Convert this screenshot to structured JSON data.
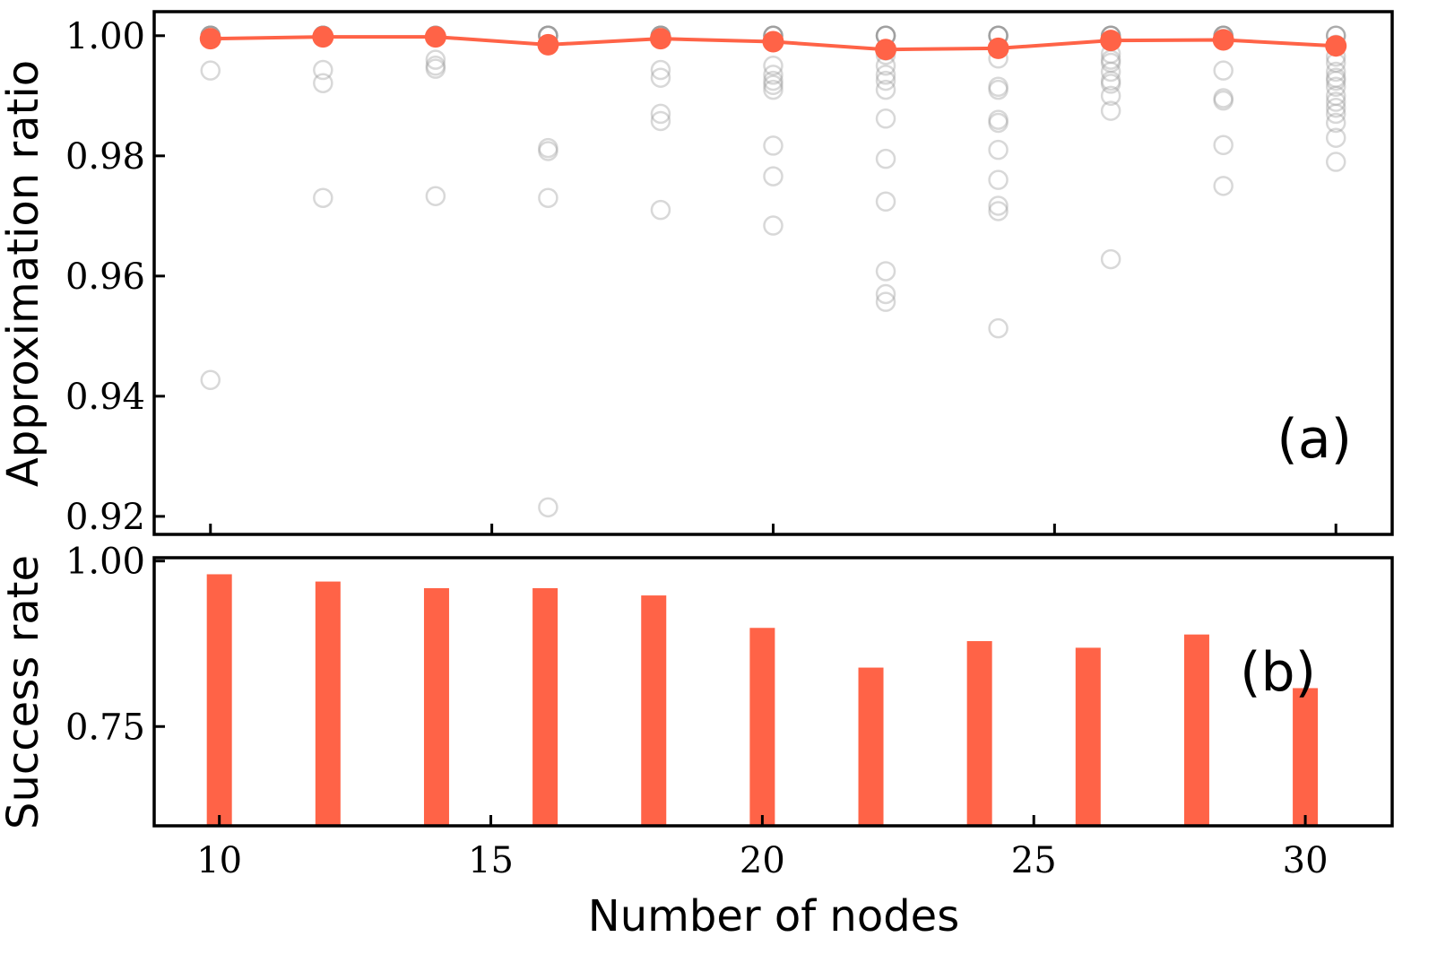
{
  "colors": {
    "accent": "#FF6347",
    "scatter": "#9E9E9E",
    "axis": "#000000"
  },
  "chart_data": [
    {
      "type": "scatter",
      "panel_label": "(a)",
      "ylabel": "Approximation ratio",
      "xlim": [
        9.0,
        31.0
      ],
      "ylim": [
        0.917,
        1.004
      ],
      "xticks": [
        10,
        15,
        20,
        25,
        30
      ],
      "yticks": [
        0.92,
        0.94,
        0.96,
        0.98,
        1.0
      ],
      "ytick_labels": [
        "0.92",
        "0.94",
        "0.96",
        "0.98",
        "1.00"
      ],
      "mean_line": {
        "x": [
          10,
          12,
          14,
          16,
          18,
          20,
          22,
          24,
          26,
          28,
          30
        ],
        "y": [
          0.9995,
          0.9998,
          0.9998,
          0.9985,
          0.9995,
          0.999,
          0.9977,
          0.9979,
          0.9992,
          0.9993,
          0.9983
        ]
      },
      "samples": [
        {
          "x": 10,
          "y": [
            1.0,
            1.0,
            1.0,
            0.9995,
            0.9942,
            0.9427
          ]
        },
        {
          "x": 12,
          "y": [
            1.0,
            1.0,
            1.0,
            0.9943,
            0.9921,
            0.973
          ]
        },
        {
          "x": 14,
          "y": [
            1.0,
            1.0,
            0.996,
            0.995,
            0.9945,
            0.9733
          ]
        },
        {
          "x": 16,
          "y": [
            1.0,
            1.0,
            1.0,
            0.9813,
            0.9808,
            0.973,
            0.9215
          ]
        },
        {
          "x": 18,
          "y": [
            1.0,
            1.0,
            1.0,
            0.9943,
            0.993,
            0.987,
            0.9858,
            0.971
          ]
        },
        {
          "x": 20,
          "y": [
            1.0,
            1.0,
            0.995,
            0.9935,
            0.9925,
            0.9918,
            0.991,
            0.9817,
            0.9766,
            0.9684
          ]
        },
        {
          "x": 22,
          "y": [
            1.0,
            1.0,
            0.9975,
            0.9968,
            0.995,
            0.9935,
            0.9925,
            0.991,
            0.9862,
            0.9795,
            0.9724,
            0.9608,
            0.957,
            0.9557
          ]
        },
        {
          "x": 24,
          "y": [
            1.0,
            1.0,
            0.9962,
            0.9915,
            0.991,
            0.986,
            0.9855,
            0.981,
            0.976,
            0.9717,
            0.9708,
            0.9513
          ]
        },
        {
          "x": 26,
          "y": [
            1.0,
            1.0,
            0.997,
            0.996,
            0.9955,
            0.994,
            0.9925,
            0.992,
            0.99,
            0.9875,
            0.9628
          ]
        },
        {
          "x": 28,
          "y": [
            1.0,
            1.0,
            0.9995,
            0.9942,
            0.9896,
            0.9892,
            0.9818,
            0.975
          ]
        },
        {
          "x": 30,
          "y": [
            1.0,
            0.9985,
            0.9965,
            0.9955,
            0.994,
            0.993,
            0.9925,
            0.9915,
            0.99,
            0.989,
            0.988,
            0.987,
            0.9855,
            0.983,
            0.979
          ]
        }
      ]
    },
    {
      "type": "bar",
      "panel_label": "(b)",
      "xlabel": "Number of nodes",
      "ylabel": "Success rate",
      "xlim": [
        8.8,
        31.6
      ],
      "ylim": [
        0.6,
        1.005
      ],
      "xticks": [
        10,
        15,
        20,
        25,
        30
      ],
      "yticks": [
        0.75,
        1.0
      ],
      "ytick_labels": [
        "0.75",
        "1.00"
      ],
      "categories": [
        10,
        12,
        14,
        16,
        18,
        20,
        22,
        24,
        26,
        28,
        30
      ],
      "values": [
        0.98,
        0.969,
        0.959,
        0.959,
        0.948,
        0.899,
        0.839,
        0.879,
        0.869,
        0.889,
        0.808
      ]
    }
  ]
}
